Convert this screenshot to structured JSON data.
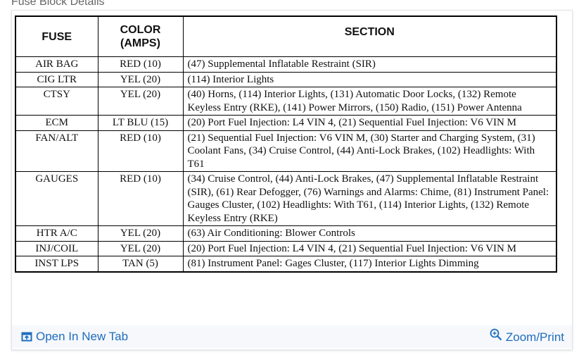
{
  "title": "Fuse Block Details",
  "table": {
    "headers": [
      "FUSE",
      "COLOR (AMPS)",
      "SECTION"
    ],
    "header_color_line1": "COLOR",
    "header_color_line2": "(AMPS)",
    "rows": [
      {
        "fuse": "AIR BAG",
        "color": "RED (10)",
        "section": "(47) Supplemental Inflatable Restraint (SIR)"
      },
      {
        "fuse": "CIG LTR",
        "color": "YEL (20)",
        "section": "(114) Interior Lights"
      },
      {
        "fuse": "CTSY",
        "color": "YEL (20)",
        "section": "(40) Horns, (114) Interior Lights, (131) Automatic Door Locks, (132) Remote Keyless Entry (RKE), (141) Power Mirrors, (150) Radio, (151) Power Antenna"
      },
      {
        "fuse": "ECM",
        "color": "LT BLU (15)",
        "section": "(20) Port Fuel Injection: L4 VIN 4, (21) Sequential Fuel Injection: V6 VIN M"
      },
      {
        "fuse": "FAN/ALT",
        "color": "RED (10)",
        "section": "(21) Sequential Fuel Injection: V6 VIN M, (30) Starter and Charging System, (31) Coolant Fans, (34) Cruise Control, (44) Anti-Lock Brakes, (102) Headlights: With T61"
      },
      {
        "fuse": "GAUGES",
        "color": "RED (10)",
        "section": "(34) Cruise Control, (44) Anti-Lock Brakes, (47) Supplemental Inflatable Restraint (SIR), (61) Rear Defogger, (76) Warnings and Alarms: Chime, (81) Instrument Panel: Gauges Cluster, (102) Headlights: With T61, (114) Interior Lights, (132) Remote Keyless Entry (RKE)"
      },
      {
        "fuse": "HTR A/C",
        "color": "YEL (20)",
        "section": "(63) Air Conditioning: Blower Controls"
      },
      {
        "fuse": "INJ/COIL",
        "color": "YEL (20)",
        "section": "(20) Port Fuel Injection: L4 VIN 4, (21) Sequential Fuel Injection: V6 VIN M"
      },
      {
        "fuse": "INST LPS",
        "color": "TAN (5)",
        "section": "(81) Instrument Panel: Gages Cluster, (117) Interior Lights Dimming"
      }
    ]
  },
  "footer": {
    "open_label": "Open In New Tab",
    "open_icon": "open-new-tab-icon",
    "zoom_label": "Zoom/Print",
    "zoom_icon": "zoom-in-icon",
    "link_color": "#1f6dbd"
  }
}
